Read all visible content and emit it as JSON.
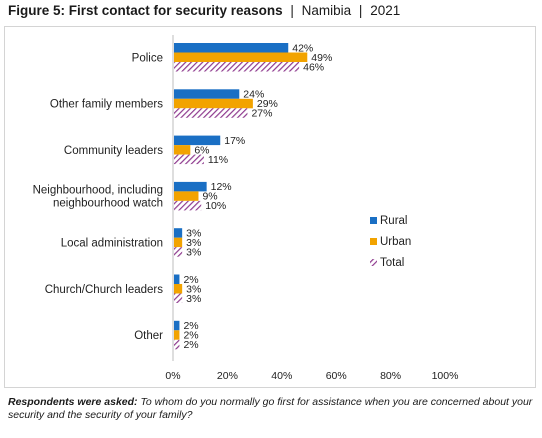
{
  "figure": {
    "title_bold": "Figure 5: First contact for security reasons",
    "country": "Namibia",
    "year": "2021",
    "separator": "|"
  },
  "chart_data": {
    "type": "bar",
    "orientation": "horizontal",
    "categories": [
      "Police",
      "Other family members",
      "Community leaders",
      "Neighbourhood, including neighbourhood watch",
      "Local administration",
      "Church/Church leaders",
      "Other"
    ],
    "category_lines": [
      [
        "Police"
      ],
      [
        "Other family members"
      ],
      [
        "Community leaders"
      ],
      [
        "Neighbourhood, including",
        "neighbourhood watch"
      ],
      [
        "Local administration"
      ],
      [
        "Church/Church leaders"
      ],
      [
        "Other"
      ]
    ],
    "series": [
      {
        "name": "Rural",
        "values": [
          42,
          24,
          17,
          12,
          3,
          2,
          2
        ],
        "color": "#1a6fc4",
        "pattern": "solid"
      },
      {
        "name": "Urban",
        "values": [
          49,
          29,
          6,
          9,
          3,
          3,
          2
        ],
        "color": "#f2a300",
        "pattern": "solid"
      },
      {
        "name": "Total",
        "values": [
          46,
          27,
          11,
          10,
          3,
          3,
          2
        ],
        "color": "#8e3a8e",
        "pattern": "diagonal-hatch"
      }
    ],
    "value_suffix": "%",
    "xlim": [
      0,
      100
    ],
    "xticks": [
      "0%",
      "20%",
      "40%",
      "60%",
      "80%",
      "100%"
    ],
    "xtick_values": [
      0,
      20,
      40,
      60,
      80,
      100
    ],
    "grid": false,
    "legend_position": "right"
  },
  "footnote": {
    "lead": "Respondents were asked:",
    "text": "To whom do you normally go first for assistance when you are concerned about your security and the security of your family?"
  }
}
